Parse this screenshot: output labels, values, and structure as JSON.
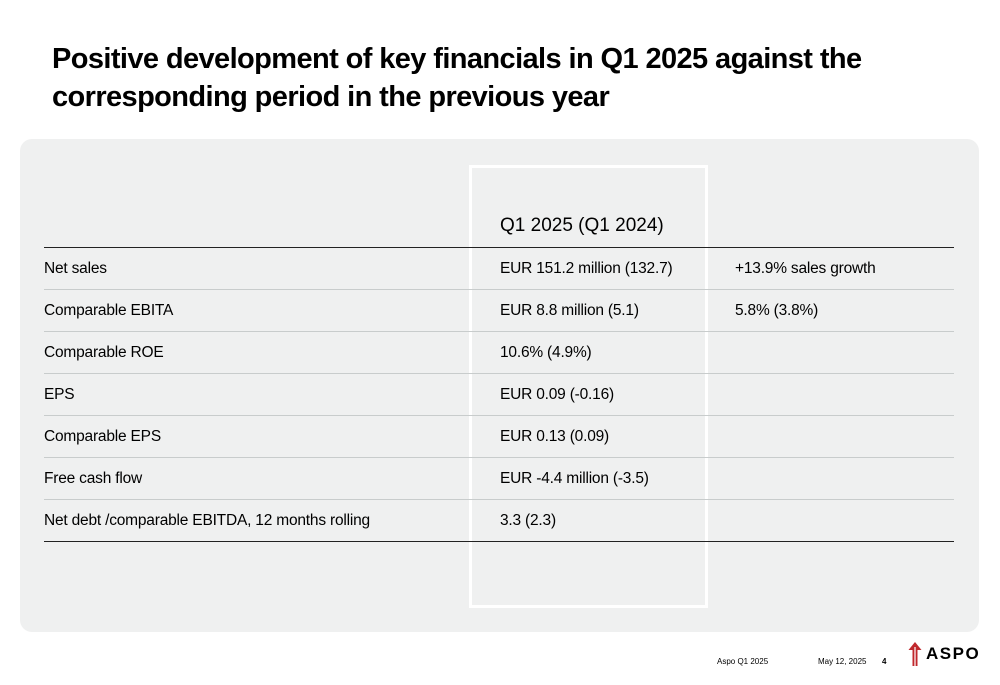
{
  "slide": {
    "title": "Positive development of key financials in Q1 2025 against the corresponding period in the previous year"
  },
  "table": {
    "column_header": "Q1 2025 (Q1 2024)",
    "rows": [
      {
        "label": "Net sales",
        "value": "EUR 151.2 million (132.7)",
        "note": "+13.9% sales growth"
      },
      {
        "label": "Comparable EBITA",
        "value": "EUR 8.8 million (5.1)",
        "note": "5.8% (3.8%)"
      },
      {
        "label": "Comparable ROE",
        "value": "10.6% (4.9%)",
        "note": ""
      },
      {
        "label": "EPS",
        "value": "EUR 0.09 (-0.16)",
        "note": ""
      },
      {
        "label": "Comparable EPS",
        "value": "EUR 0.13 (0.09)",
        "note": ""
      },
      {
        "label": "Free cash flow",
        "value": "EUR -4.4 million (-3.5)",
        "note": ""
      },
      {
        "label": "Net debt /comparable EBITDA, 12 months rolling",
        "value": "3.3 (2.3)",
        "note": ""
      }
    ]
  },
  "footer": {
    "company": "Aspo Q1 2025",
    "date": "May 12, 2025",
    "page": "4",
    "logo_text": "ASPO"
  },
  "colors": {
    "panel": "#eff0f0",
    "logo_accent": "#c0282d"
  }
}
